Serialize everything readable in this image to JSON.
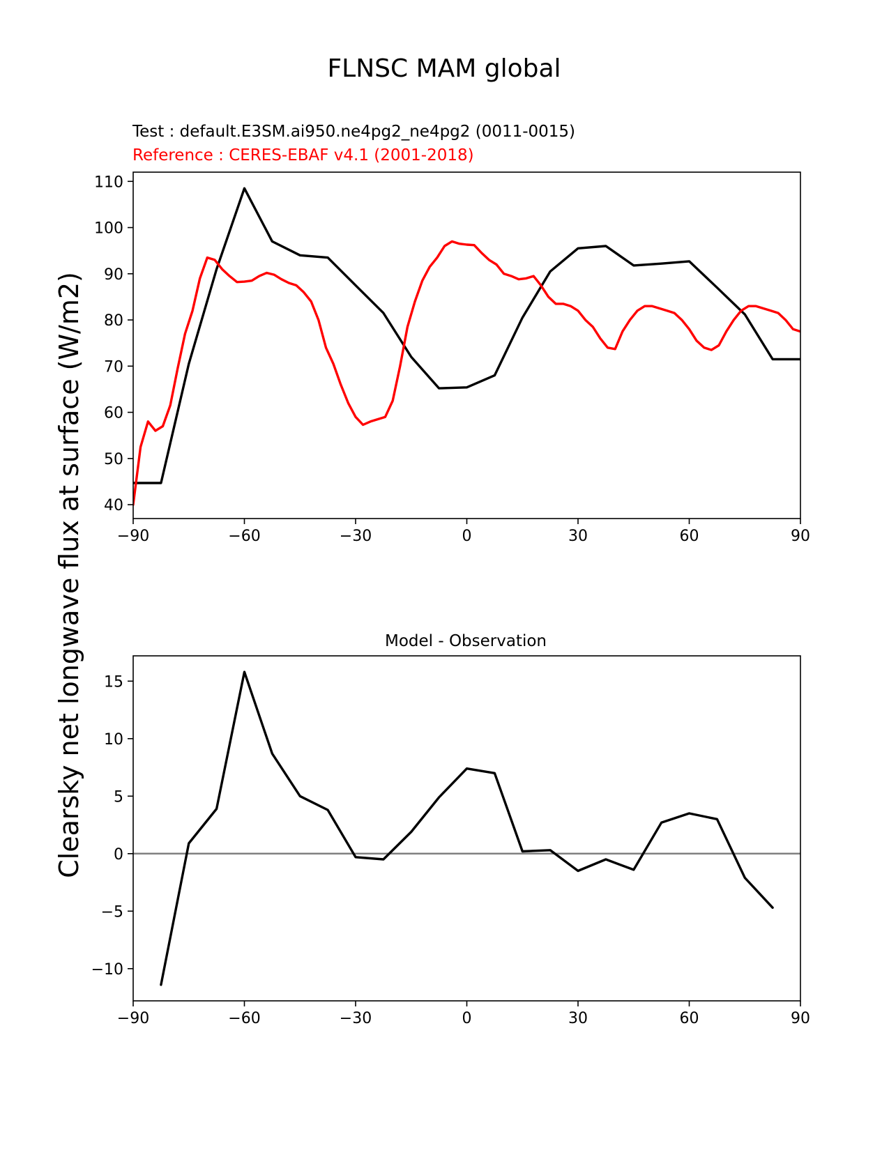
{
  "figure": {
    "title": "FLNSC MAM global",
    "ylabel": "Clearsky net longwave flux at surface (W/m2)"
  },
  "chart_data": [
    {
      "type": "line",
      "title_test": "Test : default.E3SM.ai950.ne4pg2_ne4pg2 (0011-0015)",
      "title_ref": "Reference : CERES-EBAF v4.1 (2001-2018)",
      "xlabel": "",
      "ylabel": "Clearsky net longwave flux at surface (W/m2)",
      "xlim": [
        -90,
        90
      ],
      "ylim": [
        37,
        112
      ],
      "xticks": [
        -90,
        -60,
        -30,
        0,
        30,
        60,
        90
      ],
      "xtick_labels": [
        "−90",
        "−60",
        "−30",
        "0",
        "30",
        "60",
        "90"
      ],
      "yticks": [
        40,
        50,
        60,
        70,
        80,
        90,
        100,
        110
      ],
      "ytick_labels": [
        "40",
        "50",
        "60",
        "70",
        "80",
        "90",
        "100",
        "110"
      ],
      "series": [
        {
          "name": "Test",
          "color": "#000000",
          "x": [
            -90,
            -82.5,
            -75,
            -67.5,
            -60,
            -52.5,
            -45,
            -37.5,
            -30,
            -22.5,
            -15,
            -7.5,
            0,
            7.5,
            15,
            22.5,
            30,
            37.5,
            45,
            52.5,
            60,
            67.5,
            75,
            82.5,
            90
          ],
          "y": [
            44.7,
            44.7,
            70.5,
            91.0,
            108.5,
            97.0,
            94.0,
            93.5,
            87.5,
            81.5,
            72.0,
            65.2,
            65.4,
            68.0,
            80.5,
            90.5,
            95.5,
            96.0,
            91.8,
            92.2,
            92.7,
            87.0,
            81.2,
            71.5,
            71.5
          ]
        },
        {
          "name": "Reference",
          "color": "#ff0000",
          "x": [
            -90,
            -88,
            -86,
            -84,
            -82,
            -80,
            -78,
            -76,
            -74,
            -72,
            -70,
            -68,
            -66,
            -64,
            -62,
            -60,
            -58,
            -56,
            -54,
            -52,
            -50,
            -48,
            -46,
            -44,
            -42,
            -40,
            -38,
            -36,
            -34,
            -32,
            -30,
            -28,
            -26,
            -24,
            -22,
            -20,
            -18,
            -16,
            -14,
            -12,
            -10,
            -8,
            -6,
            -4,
            -2,
            0,
            2,
            4,
            6,
            8,
            10,
            12,
            14,
            16,
            18,
            20,
            22,
            24,
            26,
            28,
            30,
            32,
            34,
            36,
            38,
            40,
            42,
            44,
            46,
            48,
            50,
            52,
            54,
            56,
            58,
            60,
            62,
            64,
            66,
            68,
            70,
            72,
            74,
            76,
            78,
            80,
            82,
            84,
            86,
            88,
            90
          ],
          "y": [
            40.0,
            52.5,
            58.0,
            56.0,
            57.0,
            61.5,
            69.5,
            77.0,
            82.0,
            89.0,
            93.5,
            93.0,
            91.0,
            89.5,
            88.2,
            88.3,
            88.5,
            89.5,
            90.2,
            89.8,
            88.8,
            88.0,
            87.5,
            86.0,
            84.0,
            80.0,
            74.0,
            70.5,
            66.0,
            62.0,
            59.0,
            57.3,
            58.0,
            58.5,
            59.0,
            62.5,
            70.0,
            78.5,
            84.0,
            88.5,
            91.5,
            93.5,
            96.0,
            97.0,
            96.5,
            96.3,
            96.2,
            94.5,
            93.0,
            92.0,
            90.0,
            89.5,
            88.8,
            89.0,
            89.5,
            87.5,
            85.0,
            83.5,
            83.5,
            83.0,
            82.0,
            80.0,
            78.5,
            76.0,
            74.0,
            73.7,
            77.5,
            80.0,
            82.0,
            83.0,
            83.0,
            82.5,
            82.0,
            81.5,
            80.0,
            78.0,
            75.5,
            74.0,
            73.5,
            74.5,
            77.5,
            80.0,
            82.0,
            83.0,
            83.0,
            82.5,
            82.0,
            81.5,
            80.0,
            78.0,
            77.5
          ]
        }
      ]
    },
    {
      "type": "line",
      "title": "Model - Observation",
      "xlabel": "",
      "ylabel": "Clearsky net longwave flux at surface (W/m2)",
      "xlim": [
        -90,
        90
      ],
      "ylim": [
        -12.8,
        17.2
      ],
      "xticks": [
        -90,
        -60,
        -30,
        0,
        30,
        60,
        90
      ],
      "xtick_labels": [
        "−90",
        "−60",
        "−30",
        "0",
        "30",
        "60",
        "90"
      ],
      "yticks": [
        -10,
        -5,
        0,
        5,
        10,
        15
      ],
      "ytick_labels": [
        "−10",
        "−5",
        "0",
        "5",
        "10",
        "15"
      ],
      "zero_line_color": "#808080",
      "series": [
        {
          "name": "Model - Observation",
          "color": "#000000",
          "x": [
            -82.5,
            -75,
            -67.5,
            -60,
            -52.5,
            -45,
            -37.5,
            -30,
            -22.5,
            -15,
            -7.5,
            0,
            7.5,
            15,
            22.5,
            30,
            37.5,
            45,
            52.5,
            60,
            67.5,
            75,
            82.5
          ],
          "y": [
            -11.4,
            0.9,
            3.9,
            15.8,
            8.7,
            5.0,
            3.8,
            -0.3,
            -0.5,
            1.9,
            4.9,
            7.4,
            7.0,
            0.2,
            0.3,
            -1.5,
            -0.5,
            -1.4,
            2.7,
            3.5,
            3.0,
            -2.1,
            -4.7
          ]
        }
      ]
    }
  ]
}
